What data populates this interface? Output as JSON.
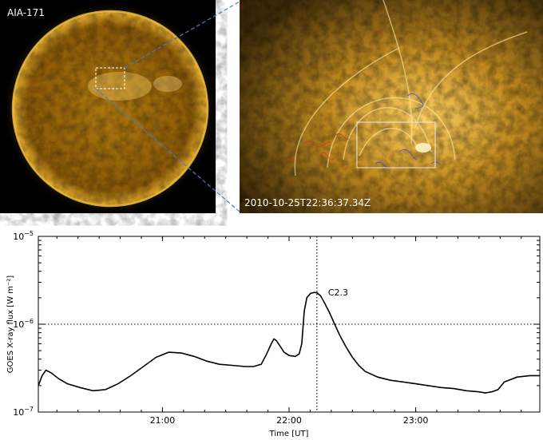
{
  "images": {
    "full_disk_label": "AIA-171",
    "zoom_timestamp": "2010-10-25T22:36:37.34Z",
    "colors": {
      "sun_core": "#b07a10",
      "sun_limb": "#e8b030",
      "zoom_bright": "#ffd060",
      "zoom_dark": "#3a2808",
      "connector": "#3a7fd0",
      "contour_red": "#e03020",
      "contour_blue": "#4050d0"
    }
  },
  "chart_data": {
    "type": "line",
    "title": "",
    "xlabel": "Time [UT]",
    "ylabel": "GOES X-ray flux [W m⁻²]",
    "yscale": "log",
    "xlim": [
      20.02,
      23.98
    ],
    "ylim": [
      1e-07,
      1e-05
    ],
    "x_ticks": [
      {
        "value": 21.0,
        "label": "21:00"
      },
      {
        "value": 22.0,
        "label": "22:00"
      },
      {
        "value": 23.0,
        "label": "23:00"
      }
    ],
    "y_ticks": [
      {
        "value": 1e-07,
        "base": "10",
        "exp": "−7"
      },
      {
        "value": 1e-06,
        "base": "10",
        "exp": "−6"
      },
      {
        "value": 1e-05,
        "base": "10",
        "exp": "−5"
      }
    ],
    "reference_lines": {
      "horizontal": 1e-06,
      "vertical": 22.22
    },
    "annotation": {
      "text": "C2.3",
      "x": 22.22,
      "y": 2.3e-06
    },
    "series": [
      {
        "x": [
          20.02,
          20.05,
          20.08,
          20.12,
          20.18,
          20.25,
          20.35,
          20.45,
          20.55,
          20.65,
          20.75,
          20.85,
          20.95,
          21.05,
          21.15,
          21.25,
          21.35,
          21.45,
          21.55,
          21.65,
          21.72,
          21.78,
          21.82,
          21.86,
          21.88,
          21.9,
          21.93,
          21.96,
          22.0,
          22.05,
          22.08,
          22.1,
          22.12,
          22.14,
          22.17,
          22.2,
          22.22,
          22.25,
          22.28,
          22.32,
          22.36,
          22.4,
          22.45,
          22.5,
          22.55,
          22.6,
          22.7,
          22.8,
          22.9,
          23.0,
          23.1,
          23.2,
          23.3,
          23.4,
          23.5,
          23.55,
          23.6,
          23.65,
          23.7,
          23.8,
          23.9,
          23.98
        ],
        "y": [
          2e-07,
          2.6e-07,
          3e-07,
          2.8e-07,
          2.4e-07,
          2.1e-07,
          1.9e-07,
          1.75e-07,
          1.8e-07,
          2.1e-07,
          2.6e-07,
          3.3e-07,
          4.2e-07,
          4.8e-07,
          4.7e-07,
          4.3e-07,
          3.8e-07,
          3.5e-07,
          3.4e-07,
          3.3e-07,
          3.3e-07,
          3.5e-07,
          4.5e-07,
          6e-07,
          6.8e-07,
          6.5e-07,
          5.6e-07,
          4.8e-07,
          4.4e-07,
          4.3e-07,
          4.6e-07,
          6e-07,
          1.4e-06,
          2e-06,
          2.25e-06,
          2.3e-06,
          2.28e-06,
          2.1e-06,
          1.75e-06,
          1.35e-06,
          1e-06,
          7.5e-07,
          5.5e-07,
          4.2e-07,
          3.4e-07,
          2.9e-07,
          2.5e-07,
          2.3e-07,
          2.2e-07,
          2.1e-07,
          2e-07,
          1.9e-07,
          1.85e-07,
          1.75e-07,
          1.7e-07,
          1.65e-07,
          1.7e-07,
          1.8e-07,
          2.2e-07,
          2.5e-07,
          2.6e-07,
          2.6e-07
        ]
      }
    ]
  }
}
